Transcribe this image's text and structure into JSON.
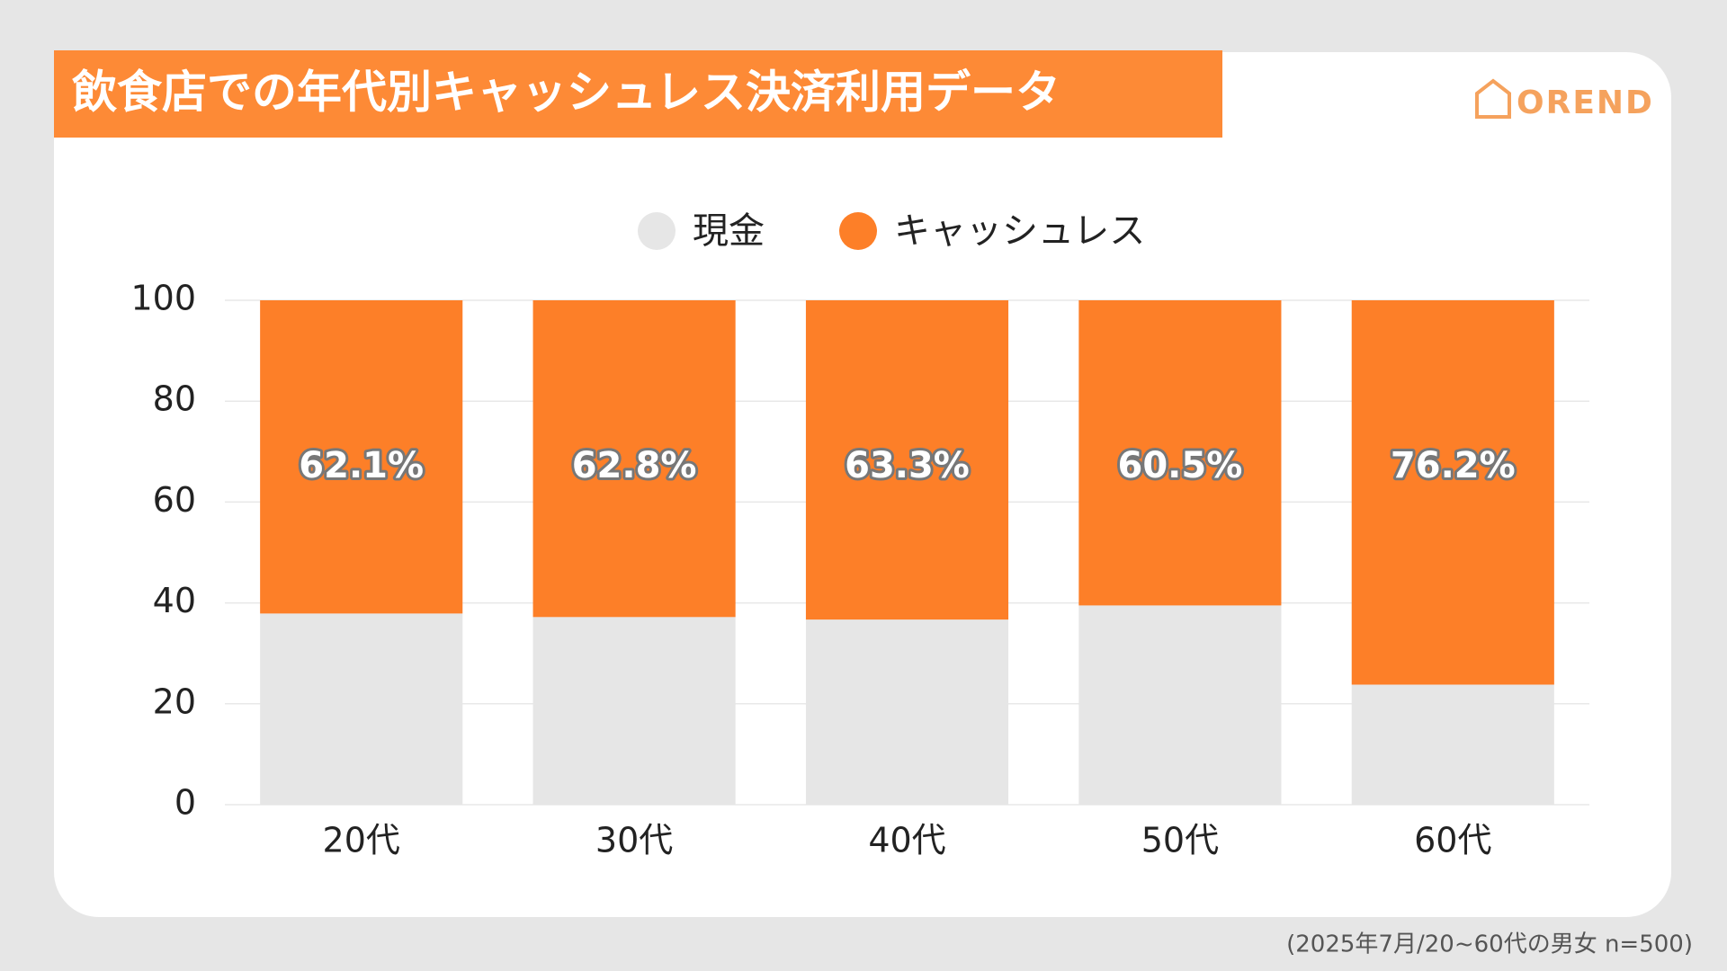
{
  "chart_data": {
    "type": "stacked_bar",
    "title": "飲食店での年代別キャッシュレス決済利用データ",
    "brand": "OREND",
    "note": "(2025年7月/20~60代の男女 n=500)",
    "categories": [
      "20代",
      "30代",
      "40代",
      "50代",
      "60代"
    ],
    "series": [
      {
        "name": "現金",
        "color": "#e6e6e6",
        "values": [
          37.9,
          37.2,
          36.7,
          39.5,
          23.8
        ]
      },
      {
        "name": "キャッシュレス",
        "color": "#fd7f28",
        "values": [
          62.1,
          62.8,
          63.3,
          60.5,
          76.2
        ],
        "value_labels": [
          "62.1%",
          "62.8%",
          "63.3%",
          "60.5%",
          "76.2%"
        ]
      }
    ],
    "ylim": [
      0,
      100
    ],
    "yticks": [
      0,
      20,
      40,
      60,
      80,
      100
    ],
    "grid": true
  }
}
